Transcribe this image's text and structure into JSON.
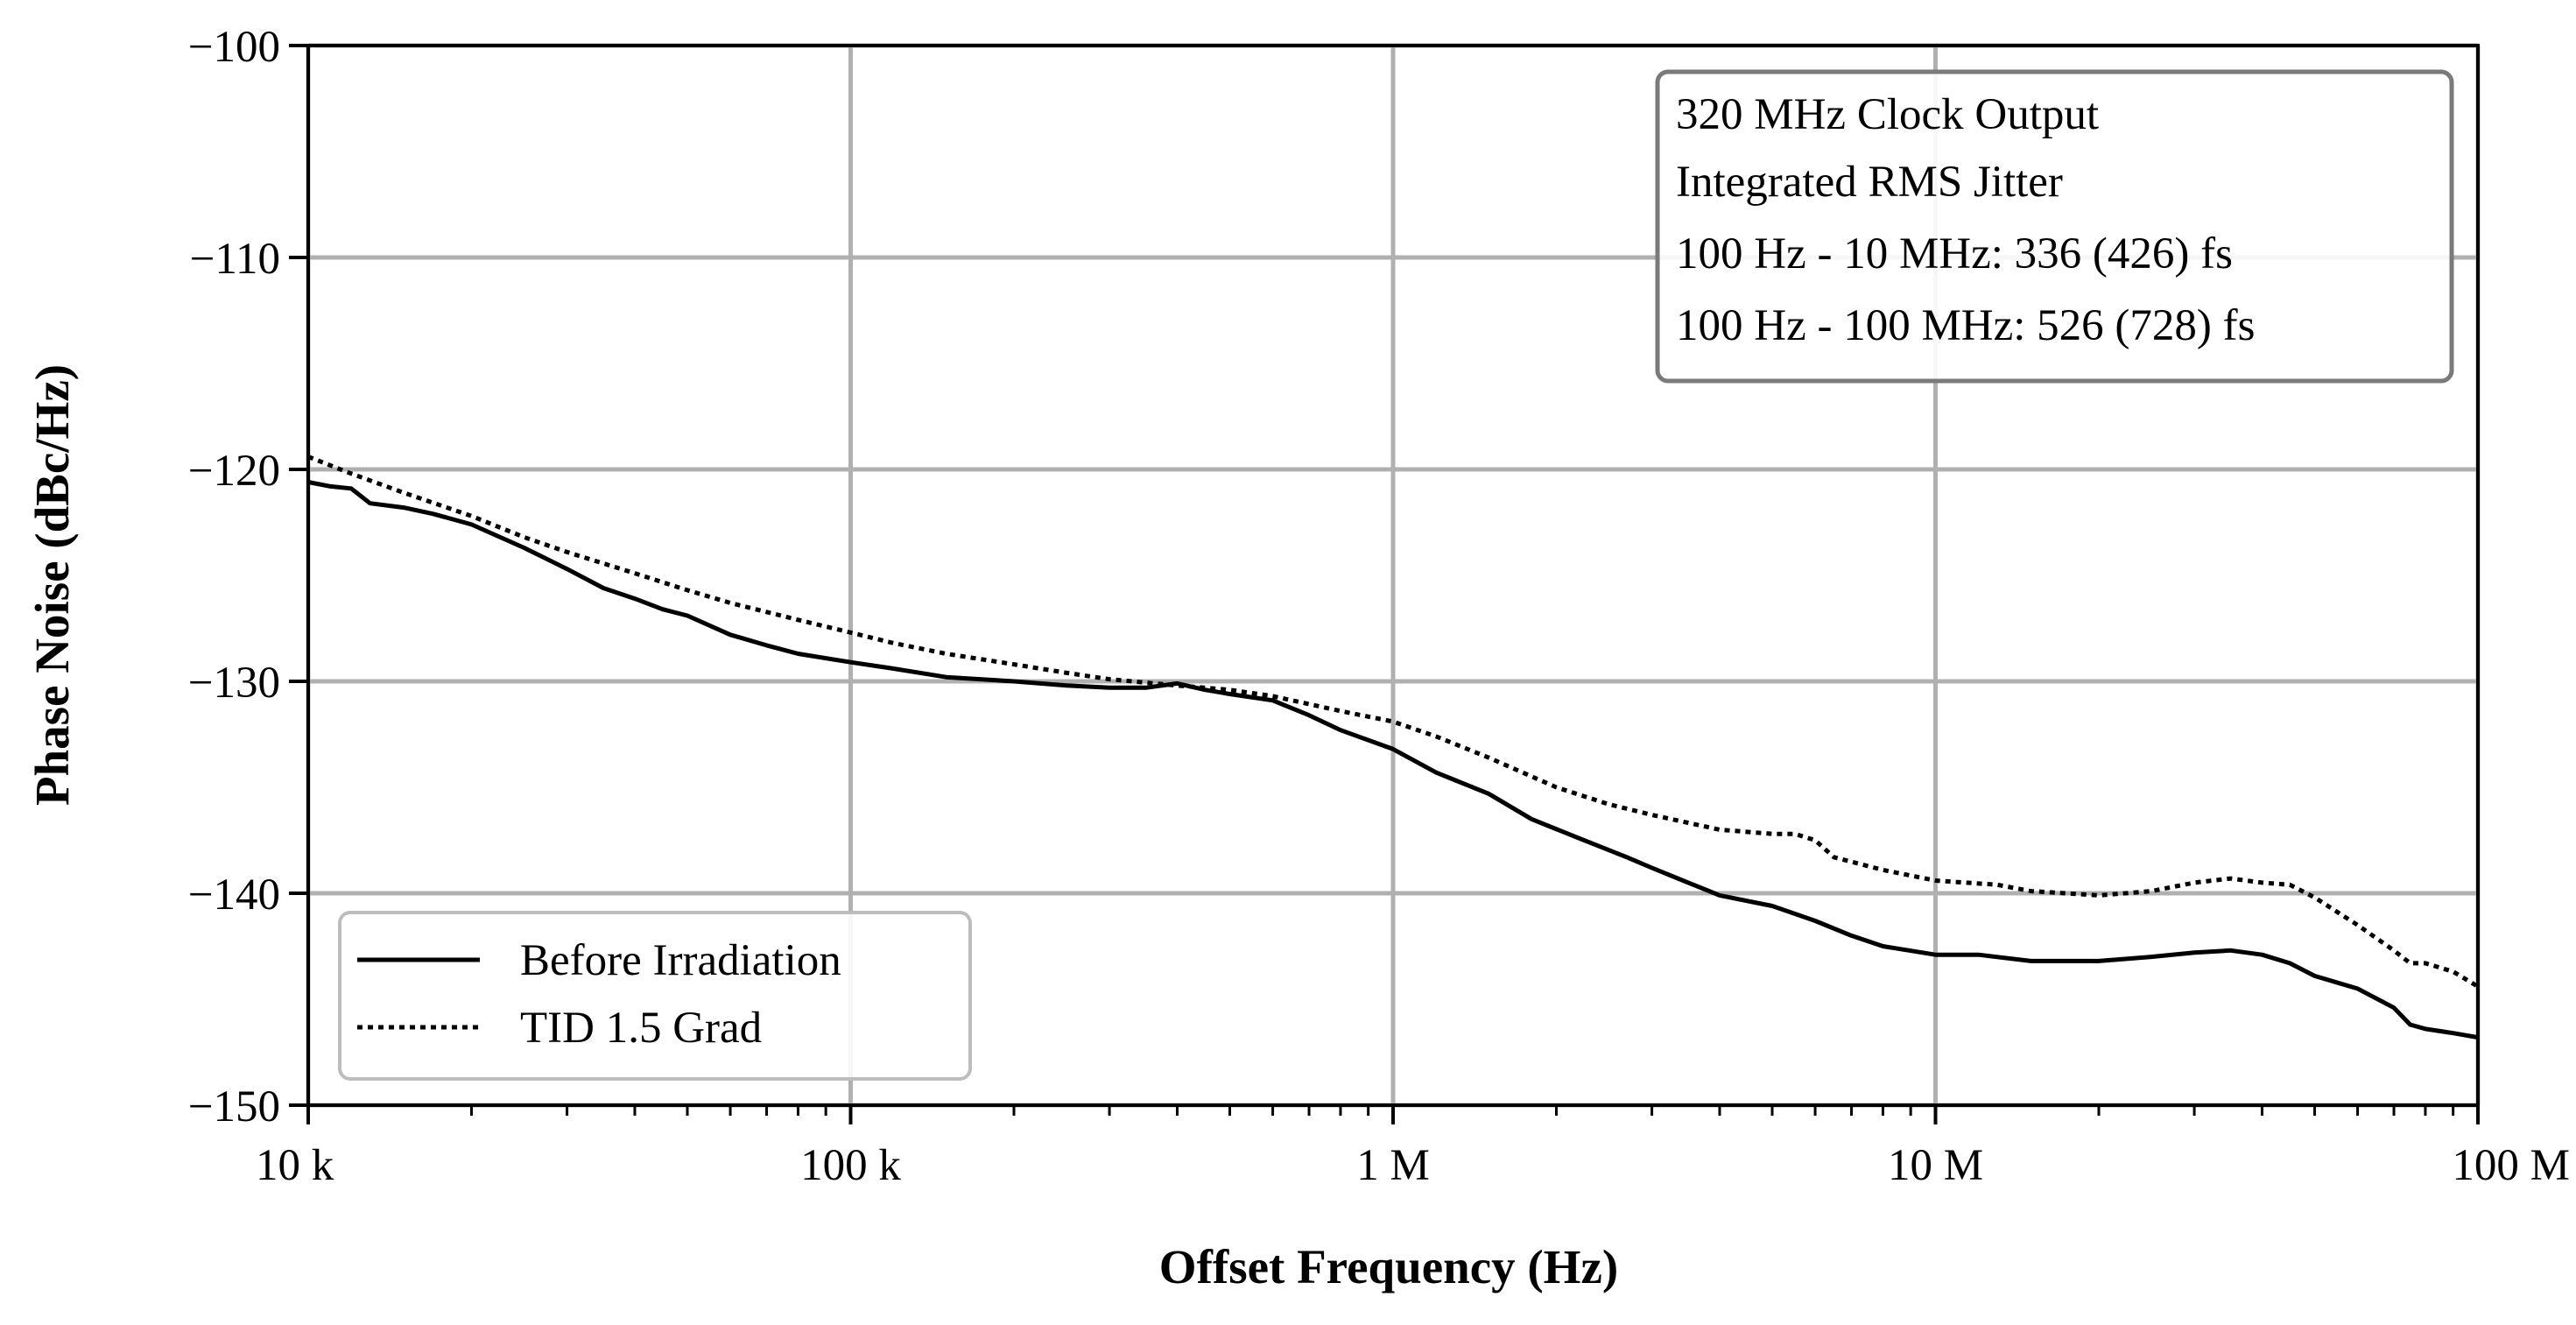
{
  "chart_data": {
    "type": "line",
    "xscale": "log",
    "xlabel": "Offset Frequency (Hz)",
    "ylabel": "Phase Noise (dBc/Hz)",
    "xlim": [
      10000,
      100000000
    ],
    "ylim": [
      -150,
      -100
    ],
    "grid": true,
    "x_ticks": [
      {
        "value": 10000,
        "label": "10 k"
      },
      {
        "value": 100000,
        "label": "100 k"
      },
      {
        "value": 1000000,
        "label": "1 M"
      },
      {
        "value": 10000000,
        "label": "10 M"
      },
      {
        "value": 100000000,
        "label": "100 M"
      }
    ],
    "y_ticks": [
      {
        "value": -100,
        "label": "−100"
      },
      {
        "value": -110,
        "label": "−110"
      },
      {
        "value": -120,
        "label": "−120"
      },
      {
        "value": -130,
        "label": "−130"
      },
      {
        "value": -140,
        "label": "−140"
      },
      {
        "value": -150,
        "label": "−150"
      }
    ],
    "annotation": {
      "lines": [
        "320 MHz Clock Output",
        "Integrated RMS Jitter",
        "100 Hz - 10 MHz: 336 (426) fs",
        "100 Hz - 100 MHz: 526 (728) fs"
      ],
      "position": "top-right"
    },
    "legend": {
      "position": "bottom-left"
    },
    "series": [
      {
        "name": "Before Irradiation",
        "style": "solid",
        "color": "#000000",
        "points": [
          [
            10000,
            -120.6
          ],
          [
            11000,
            -120.8
          ],
          [
            12000,
            -120.9
          ],
          [
            13000,
            -121.6
          ],
          [
            15000,
            -121.8
          ],
          [
            17000,
            -122.1
          ],
          [
            20000,
            -122.6
          ],
          [
            25000,
            -123.7
          ],
          [
            30000,
            -124.7
          ],
          [
            35000,
            -125.6
          ],
          [
            40000,
            -126.1
          ],
          [
            45000,
            -126.6
          ],
          [
            50000,
            -126.9
          ],
          [
            60000,
            -127.8
          ],
          [
            70000,
            -128.3
          ],
          [
            80000,
            -128.7
          ],
          [
            100000,
            -129.1
          ],
          [
            120000,
            -129.4
          ],
          [
            150000,
            -129.8
          ],
          [
            200000,
            -130.0
          ],
          [
            250000,
            -130.2
          ],
          [
            300000,
            -130.3
          ],
          [
            350000,
            -130.3
          ],
          [
            400000,
            -130.1
          ],
          [
            450000,
            -130.4
          ],
          [
            500000,
            -130.6
          ],
          [
            600000,
            -130.9
          ],
          [
            700000,
            -131.6
          ],
          [
            800000,
            -132.3
          ],
          [
            1000000,
            -133.2
          ],
          [
            1200000,
            -134.3
          ],
          [
            1500000,
            -135.3
          ],
          [
            1800000,
            -136.5
          ],
          [
            2200000,
            -137.4
          ],
          [
            2700000,
            -138.3
          ],
          [
            3000000,
            -138.8
          ],
          [
            3500000,
            -139.5
          ],
          [
            4000000,
            -140.1
          ],
          [
            5000000,
            -140.6
          ],
          [
            6000000,
            -141.3
          ],
          [
            7000000,
            -142.0
          ],
          [
            8000000,
            -142.5
          ],
          [
            10000000,
            -142.9
          ],
          [
            12000000,
            -142.9
          ],
          [
            15000000,
            -143.2
          ],
          [
            20000000,
            -143.2
          ],
          [
            25000000,
            -143.0
          ],
          [
            30000000,
            -142.8
          ],
          [
            35000000,
            -142.7
          ],
          [
            40000000,
            -142.9
          ],
          [
            45000000,
            -143.3
          ],
          [
            50000000,
            -143.9
          ],
          [
            60000000,
            -144.5
          ],
          [
            70000000,
            -145.4
          ],
          [
            75000000,
            -146.2
          ],
          [
            80000000,
            -146.4
          ],
          [
            90000000,
            -146.6
          ],
          [
            100000000,
            -146.8
          ]
        ]
      },
      {
        "name": "TID 1.5 Grad",
        "style": "dotted",
        "color": "#000000",
        "points": [
          [
            10000,
            -119.4
          ],
          [
            12000,
            -120.2
          ],
          [
            15000,
            -121.1
          ],
          [
            20000,
            -122.2
          ],
          [
            25000,
            -123.2
          ],
          [
            30000,
            -123.9
          ],
          [
            40000,
            -124.9
          ],
          [
            50000,
            -125.7
          ],
          [
            60000,
            -126.3
          ],
          [
            80000,
            -127.1
          ],
          [
            100000,
            -127.7
          ],
          [
            120000,
            -128.2
          ],
          [
            150000,
            -128.7
          ],
          [
            200000,
            -129.2
          ],
          [
            250000,
            -129.6
          ],
          [
            300000,
            -129.9
          ],
          [
            400000,
            -130.2
          ],
          [
            500000,
            -130.4
          ],
          [
            600000,
            -130.7
          ],
          [
            800000,
            -131.4
          ],
          [
            1000000,
            -131.9
          ],
          [
            1200000,
            -132.6
          ],
          [
            1500000,
            -133.6
          ],
          [
            2000000,
            -135.0
          ],
          [
            2500000,
            -135.8
          ],
          [
            3000000,
            -136.3
          ],
          [
            4000000,
            -137.0
          ],
          [
            5000000,
            -137.2
          ],
          [
            5500000,
            -137.2
          ],
          [
            6000000,
            -137.5
          ],
          [
            6500000,
            -138.3
          ],
          [
            8000000,
            -138.9
          ],
          [
            10000000,
            -139.4
          ],
          [
            13000000,
            -139.6
          ],
          [
            15000000,
            -139.9
          ],
          [
            20000000,
            -140.1
          ],
          [
            25000000,
            -139.9
          ],
          [
            30000000,
            -139.5
          ],
          [
            35000000,
            -139.3
          ],
          [
            40000000,
            -139.5
          ],
          [
            45000000,
            -139.6
          ],
          [
            50000000,
            -140.2
          ],
          [
            60000000,
            -141.5
          ],
          [
            70000000,
            -142.7
          ],
          [
            75000000,
            -143.3
          ],
          [
            80000000,
            -143.3
          ],
          [
            90000000,
            -143.7
          ],
          [
            100000000,
            -144.4
          ]
        ]
      }
    ]
  }
}
